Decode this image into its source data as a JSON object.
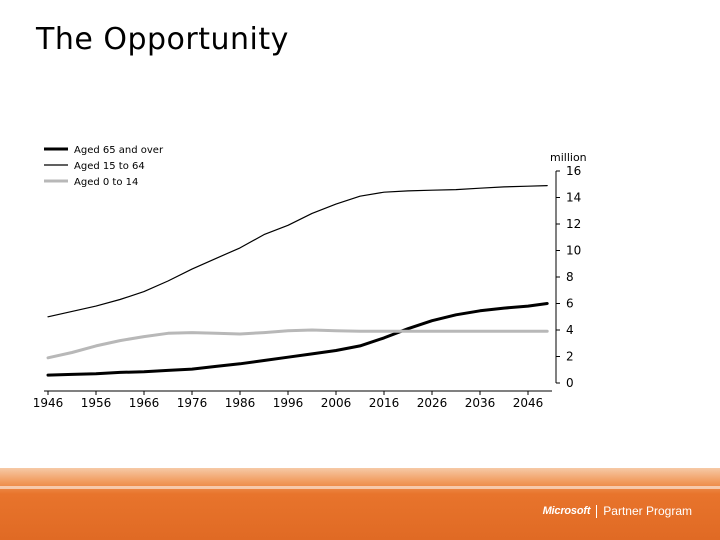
{
  "slide": {
    "title": "The Opportunity"
  },
  "brand": {
    "name": "Microsoft",
    "program": "Partner Program"
  },
  "chart_data": {
    "type": "line",
    "title": "",
    "ylabel": "million",
    "xlabel": "",
    "xlim": [
      1946,
      2051
    ],
    "ylim": [
      0,
      16
    ],
    "x_ticks": [
      1946,
      1956,
      1966,
      1976,
      1986,
      1996,
      2006,
      2016,
      2026,
      2036,
      2046
    ],
    "y_ticks": [
      0,
      2,
      4,
      6,
      8,
      10,
      12,
      14,
      16
    ],
    "y_axis_side": "right",
    "legend_position": "top-left",
    "series": [
      {
        "name": "Aged 65 and over",
        "color": "#000000",
        "style": "thick",
        "points": [
          [
            1946,
            0.6
          ],
          [
            1951,
            0.65
          ],
          [
            1956,
            0.7
          ],
          [
            1961,
            0.8
          ],
          [
            1966,
            0.85
          ],
          [
            1971,
            0.95
          ],
          [
            1976,
            1.05
          ],
          [
            1981,
            1.25
          ],
          [
            1986,
            1.45
          ],
          [
            1991,
            1.7
          ],
          [
            1996,
            1.95
          ],
          [
            2001,
            2.2
          ],
          [
            2006,
            2.45
          ],
          [
            2011,
            2.8
          ],
          [
            2016,
            3.4
          ],
          [
            2021,
            4.1
          ],
          [
            2026,
            4.7
          ],
          [
            2031,
            5.15
          ],
          [
            2036,
            5.45
          ],
          [
            2041,
            5.65
          ],
          [
            2046,
            5.8
          ],
          [
            2050,
            6.0
          ]
        ]
      },
      {
        "name": "Aged 15 to 64",
        "color": "#000000",
        "style": "thin",
        "points": [
          [
            1946,
            5.0
          ],
          [
            1951,
            5.4
          ],
          [
            1956,
            5.8
          ],
          [
            1961,
            6.3
          ],
          [
            1966,
            6.9
          ],
          [
            1971,
            7.7
          ],
          [
            1976,
            8.6
          ],
          [
            1981,
            9.4
          ],
          [
            1986,
            10.2
          ],
          [
            1991,
            11.2
          ],
          [
            1996,
            11.9
          ],
          [
            2001,
            12.8
          ],
          [
            2006,
            13.5
          ],
          [
            2011,
            14.1
          ],
          [
            2016,
            14.4
          ],
          [
            2021,
            14.5
          ],
          [
            2026,
            14.55
          ],
          [
            2031,
            14.6
          ],
          [
            2036,
            14.7
          ],
          [
            2041,
            14.8
          ],
          [
            2046,
            14.85
          ],
          [
            2050,
            14.9
          ]
        ]
      },
      {
        "name": "Aged 0 to 14",
        "color": "#b8b8b8",
        "style": "thick",
        "points": [
          [
            1946,
            1.9
          ],
          [
            1951,
            2.3
          ],
          [
            1956,
            2.8
          ],
          [
            1961,
            3.2
          ],
          [
            1966,
            3.5
          ],
          [
            1971,
            3.75
          ],
          [
            1976,
            3.8
          ],
          [
            1981,
            3.75
          ],
          [
            1986,
            3.7
          ],
          [
            1991,
            3.8
          ],
          [
            1996,
            3.95
          ],
          [
            2001,
            4.0
          ],
          [
            2006,
            3.95
          ],
          [
            2011,
            3.9
          ],
          [
            2016,
            3.9
          ],
          [
            2021,
            3.9
          ],
          [
            2026,
            3.9
          ],
          [
            2031,
            3.9
          ],
          [
            2036,
            3.9
          ],
          [
            2041,
            3.9
          ],
          [
            2046,
            3.9
          ],
          [
            2050,
            3.9
          ]
        ]
      }
    ]
  }
}
